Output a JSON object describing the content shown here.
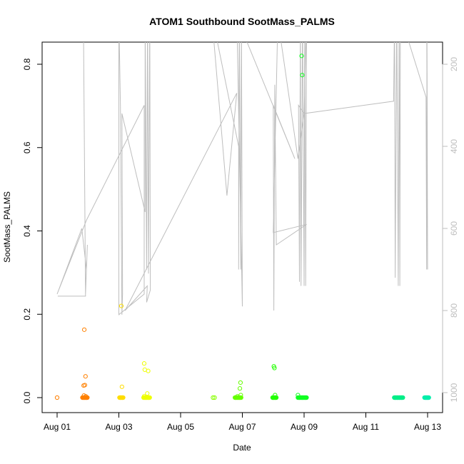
{
  "chart_data": {
    "type": "scatter",
    "title": "ATOM1 Southbound SootMass_PALMS",
    "xlabel": "Date",
    "ylabel": "SootMass_PALMS",
    "xlim": [
      0,
      12.0
    ],
    "ylim": [
      0,
      0.85
    ],
    "x_ticks": [
      {
        "value": 0,
        "label": "Aug 01"
      },
      {
        "value": 2,
        "label": "Aug 03"
      },
      {
        "value": 4,
        "label": "Aug 05"
      },
      {
        "value": 6,
        "label": "Aug 07"
      },
      {
        "value": 8,
        "label": "Aug 09"
      },
      {
        "value": 10,
        "label": "Aug 11"
      },
      {
        "value": 12,
        "label": "Aug 13"
      }
    ],
    "y_ticks": [
      0.0,
      0.2,
      0.4,
      0.6,
      0.8
    ],
    "y_tick_labels": [
      "0.0",
      "0.2",
      "0.4",
      "0.6",
      "0.8"
    ],
    "y2_ticks": [
      200,
      400,
      600,
      800,
      1000
    ],
    "y2_tick_labels": [
      "200",
      "400",
      "600",
      "800",
      "1000"
    ],
    "y2_range_top_to_bottom": [
      100,
      1030
    ],
    "points": [
      {
        "x": 0.0,
        "y": 0.0,
        "color": "#ff7f00"
      },
      {
        "x": 0.88,
        "y": 0.163,
        "color": "#ff8000"
      },
      {
        "x": 0.92,
        "y": 0.051,
        "color": "#ff8000"
      },
      {
        "x": 0.86,
        "y": 0.029,
        "color": "#ff8000"
      },
      {
        "x": 0.9,
        "y": 0.03,
        "color": "#ff8000"
      },
      {
        "x": 0.84,
        "y": 0.0,
        "color": "#ff8000"
      },
      {
        "x": 0.87,
        "y": 0.005,
        "color": "#ff8000"
      },
      {
        "x": 0.9,
        "y": 0.0,
        "color": "#ff8000"
      },
      {
        "x": 0.93,
        "y": 0.003,
        "color": "#ff8000"
      },
      {
        "x": 0.96,
        "y": 0.0,
        "color": "#ff8000"
      },
      {
        "x": 2.05,
        "y": 0.0,
        "color": "#ffdd00"
      },
      {
        "x": 2.08,
        "y": 0.22,
        "color": "#ffdd00"
      },
      {
        "x": 2.1,
        "y": 0.026,
        "color": "#ffdd00"
      },
      {
        "x": 2.12,
        "y": 0.0,
        "color": "#ffdd00"
      },
      {
        "x": 2.82,
        "y": 0.082,
        "color": "#eeff00"
      },
      {
        "x": 2.84,
        "y": 0.067,
        "color": "#eeff00"
      },
      {
        "x": 2.95,
        "y": 0.064,
        "color": "#eeff00"
      },
      {
        "x": 2.82,
        "y": 0.003,
        "color": "#eeff00"
      },
      {
        "x": 2.87,
        "y": 0.0,
        "color": "#eeff00"
      },
      {
        "x": 2.92,
        "y": 0.01,
        "color": "#eeff00"
      },
      {
        "x": 2.97,
        "y": 0.0,
        "color": "#eeff00"
      },
      {
        "x": 5.05,
        "y": 0.0,
        "color": "#88ff00"
      },
      {
        "x": 5.1,
        "y": 0.0,
        "color": "#88ff00"
      },
      {
        "x": 5.78,
        "y": 0.0,
        "color": "#66ff00"
      },
      {
        "x": 5.84,
        "y": 0.003,
        "color": "#66ff00"
      },
      {
        "x": 5.9,
        "y": 0.0,
        "color": "#66ff00"
      },
      {
        "x": 5.92,
        "y": 0.022,
        "color": "#66ff00"
      },
      {
        "x": 5.94,
        "y": 0.036,
        "color": "#66ff00"
      },
      {
        "x": 5.95,
        "y": 0.006,
        "color": "#66ff00"
      },
      {
        "x": 7.0,
        "y": 0.0,
        "color": "#22ff00"
      },
      {
        "x": 7.02,
        "y": 0.075,
        "color": "#22ff00"
      },
      {
        "x": 7.04,
        "y": 0.071,
        "color": "#22ff00"
      },
      {
        "x": 7.06,
        "y": 0.006,
        "color": "#22ff00"
      },
      {
        "x": 7.08,
        "y": 0.0,
        "color": "#22ff00"
      },
      {
        "x": 7.8,
        "y": 0.006,
        "color": "#11ff22"
      },
      {
        "x": 7.92,
        "y": 0.82,
        "color": "#11ff22"
      },
      {
        "x": 7.94,
        "y": 0.774,
        "color": "#11ff22"
      },
      {
        "x": 7.85,
        "y": 0.0,
        "color": "#11ff22"
      },
      {
        "x": 7.95,
        "y": 0.0,
        "color": "#11ff22"
      },
      {
        "x": 8.05,
        "y": 0.0,
        "color": "#11ff22"
      },
      {
        "x": 10.95,
        "y": 0.0,
        "color": "#00ee88"
      },
      {
        "x": 11.02,
        "y": 0.0,
        "color": "#00ee88"
      },
      {
        "x": 11.09,
        "y": 0.0,
        "color": "#00ee88"
      },
      {
        "x": 11.16,
        "y": 0.0,
        "color": "#00ee88"
      },
      {
        "x": 11.93,
        "y": 0.0,
        "color": "#00eeaa"
      },
      {
        "x": 11.97,
        "y": 0.0,
        "color": "#00eeaa"
      },
      {
        "x": 12.01,
        "y": 0.0,
        "color": "#00eeaa"
      }
    ],
    "clusters": [
      {
        "x_start": 0.82,
        "x_end": 0.98,
        "y": 0.0,
        "color": "#ff8000"
      },
      {
        "x_start": 2.02,
        "x_end": 2.14,
        "y": 0.0,
        "color": "#ffdd00"
      },
      {
        "x_start": 2.8,
        "x_end": 3.0,
        "y": 0.0,
        "color": "#eeff00"
      },
      {
        "x_start": 5.76,
        "x_end": 5.96,
        "y": 0.0,
        "color": "#66ff00"
      },
      {
        "x_start": 6.98,
        "x_end": 7.1,
        "y": 0.0,
        "color": "#22ff00"
      },
      {
        "x_start": 7.8,
        "x_end": 8.08,
        "y": 0.0,
        "color": "#11ff22"
      },
      {
        "x_start": 10.92,
        "x_end": 11.2,
        "y": 0.0,
        "color": "#00ee88"
      },
      {
        "x_start": 11.9,
        "x_end": 12.04,
        "y": 0.0,
        "color": "#00eeaa"
      }
    ],
    "altitude_line": {
      "color": "#bebebe",
      "y2_points": [
        [
          0.02,
          765
        ],
        [
          0.92,
          765
        ],
        [
          0.85,
          80
        ],
        [
          0.92,
          760
        ],
        [
          0.98,
          640
        ],
        [
          0.95,
          700
        ],
        [
          0.8,
          600
        ],
        [
          0.0,
          760
        ],
        [
          0.95,
          580
        ],
        [
          2.82,
          300
        ],
        [
          2.82,
          760
        ],
        [
          2.0,
          810
        ],
        [
          2.0,
          80
        ],
        [
          2.05,
          300
        ],
        [
          2.1,
          810
        ],
        [
          2.12,
          760
        ],
        [
          2.1,
          320
        ],
        [
          2.85,
          560
        ],
        [
          2.85,
          80
        ],
        [
          2.9,
          700
        ],
        [
          2.93,
          80
        ],
        [
          2.96,
          710
        ],
        [
          3.0,
          80
        ],
        [
          3.02,
          750
        ],
        [
          2.9,
          780
        ],
        [
          2.92,
          740
        ],
        [
          2.2,
          800
        ],
        [
          5.82,
          270
        ],
        [
          5.5,
          520
        ],
        [
          5.0,
          75
        ],
        [
          5.88,
          400
        ],
        [
          5.88,
          700
        ],
        [
          5.9,
          80
        ],
        [
          5.95,
          700
        ],
        [
          5.97,
          80
        ],
        [
          6.0,
          790
        ],
        [
          5.82,
          80
        ],
        [
          5.9,
          100
        ],
        [
          7.7,
          430
        ],
        [
          7.0,
          300
        ],
        [
          7.02,
          800
        ],
        [
          7.05,
          250
        ],
        [
          7.1,
          640
        ],
        [
          8.08,
          590
        ],
        [
          7.0,
          610
        ],
        [
          7.15,
          90
        ],
        [
          7.8,
          430
        ],
        [
          8.0,
          320
        ],
        [
          7.82,
          300
        ],
        [
          7.85,
          730
        ],
        [
          7.88,
          80
        ],
        [
          7.9,
          740
        ],
        [
          7.95,
          80
        ],
        [
          8.0,
          740
        ],
        [
          8.02,
          80
        ],
        [
          8.05,
          740
        ],
        [
          8.08,
          80
        ],
        [
          8.0,
          320
        ],
        [
          10.9,
          290
        ],
        [
          10.93,
          80
        ],
        [
          10.95,
          720
        ],
        [
          11.0,
          70
        ],
        [
          11.05,
          740
        ],
        [
          11.08,
          80
        ],
        [
          11.1,
          740
        ],
        [
          11.12,
          80
        ],
        [
          11.95,
          280
        ],
        [
          11.97,
          700
        ],
        [
          11.98,
          80
        ],
        [
          12.0,
          700
        ],
        [
          11.97,
          80
        ]
      ]
    }
  }
}
